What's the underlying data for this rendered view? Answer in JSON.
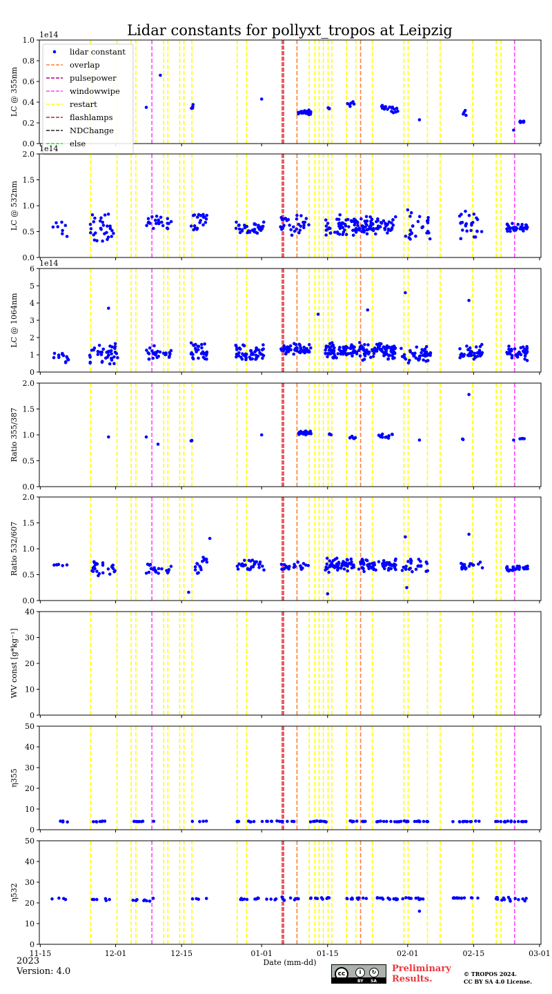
{
  "title": "Lidar constants for pollyxt_tropos at Leipzig",
  "footer": {
    "year": "2023",
    "version": "Version: 4.0",
    "preliminary_line1": "Preliminary",
    "preliminary_line2": "Results.",
    "copyright_line1": "© TROPOS 2024.",
    "copyright_line2": "CC BY SA 4.0 License.",
    "license_badge": {
      "cc": "cc",
      "by": "BY",
      "sa": "SA"
    }
  },
  "colors": {
    "points": "#0000ff",
    "overlap": "#ff7f3f",
    "pulsepower": "#aa0080",
    "windowwipe": "#ff44ff",
    "restart": "#ffff00",
    "flashlamps": "#a03030",
    "ndchange": "#202020",
    "else": "#00ff00",
    "highlight": "#e8343b"
  },
  "chart_data": {
    "type": "scatter",
    "x_unit": "days since 2022-11-15",
    "xlabel": "Date (mm-dd)",
    "xlim": [
      -0.2,
      106.3
    ],
    "xticks": [
      {
        "x": 0,
        "label": "11-15"
      },
      {
        "x": 16,
        "label": "12-01"
      },
      {
        "x": 30,
        "label": "12-15"
      },
      {
        "x": 47,
        "label": "01-01"
      },
      {
        "x": 61,
        "label": "01-15"
      },
      {
        "x": 78,
        "label": "02-01"
      },
      {
        "x": 92,
        "label": "02-15"
      },
      {
        "x": 106,
        "label": "03-01"
      }
    ],
    "legend": {
      "position": "top-left",
      "entries": [
        {
          "label": "lidar constant",
          "kind": "marker",
          "color": "#0000ff"
        },
        {
          "label": "overlap",
          "kind": "dashed",
          "color": "#ff7f3f"
        },
        {
          "label": "pulsepower",
          "kind": "dashed",
          "color": "#aa0080"
        },
        {
          "label": "windowwipe",
          "kind": "dashed",
          "color": "#ff44ff"
        },
        {
          "label": "restart",
          "kind": "dashed",
          "color": "#ffff00"
        },
        {
          "label": "flashlamps",
          "kind": "dashed",
          "color": "#a03030"
        },
        {
          "label": "NDChange",
          "kind": "dashed",
          "color": "#202020"
        },
        {
          "label": "else",
          "kind": "dashed",
          "color": "#00ff00"
        }
      ]
    },
    "events": {
      "restart": [
        10.7,
        16.3,
        19.3,
        20.3,
        26.2,
        27.1,
        29.6,
        30.5,
        32.2,
        41.8,
        43.8,
        54.5,
        57.1,
        58.3,
        59.2,
        60.1,
        61.1,
        61.9,
        65.0,
        67.0,
        70.5,
        77.2,
        78.1,
        82.2,
        84.9,
        91.8,
        96.8,
        97.8
      ],
      "windowwipe": [
        23.7,
        100.7
      ],
      "overlap": [
        54.5,
        68.0
      ],
      "highlight": [
        51.5
      ]
    },
    "panels": [
      {
        "name": "lc355",
        "ylabel": "LC @ 355nm",
        "ylim": [
          0,
          1.0
        ],
        "yticks": [
          "0.0",
          "0.2",
          "0.4",
          "0.6",
          "0.8",
          "1.0"
        ],
        "ytick_values": [
          0,
          0.2,
          0.4,
          0.6,
          0.8,
          1.0
        ],
        "offset": "1e14",
        "has_legend": true,
        "segments": [
          {
            "from": 22.5,
            "to": 22.5,
            "n": 1,
            "center": 0.35,
            "spread": 0
          },
          {
            "from": 25.5,
            "to": 25.5,
            "n": 1,
            "center": 0.66,
            "spread": 0
          },
          {
            "from": 32.0,
            "to": 32.5,
            "n": 4,
            "center": 0.35,
            "spread": 0.05
          },
          {
            "from": 47.0,
            "to": 47.0,
            "n": 1,
            "center": 0.43,
            "spread": 0
          },
          {
            "from": 54.8,
            "to": 57.5,
            "n": 40,
            "center": 0.3,
            "spread": 0.03
          },
          {
            "from": 61.0,
            "to": 62.0,
            "n": 3,
            "center": 0.34,
            "spread": 0.01
          },
          {
            "from": 65.0,
            "to": 67.0,
            "n": 6,
            "center": 0.39,
            "spread": 0.04
          },
          {
            "from": 71.5,
            "to": 76.0,
            "n": 18,
            "center": 0.34,
            "spread": 0.05
          },
          {
            "from": 80.5,
            "to": 80.5,
            "n": 1,
            "center": 0.23,
            "spread": 0
          },
          {
            "from": 89.5,
            "to": 90.5,
            "n": 4,
            "center": 0.25,
            "spread": 0.09
          },
          {
            "from": 100.5,
            "to": 100.5,
            "n": 1,
            "center": 0.13,
            "spread": 0
          },
          {
            "from": 101.8,
            "to": 102.8,
            "n": 10,
            "center": 0.21,
            "spread": 0.01
          }
        ]
      },
      {
        "name": "lc532",
        "ylabel": "LC @ 532nm",
        "ylim": [
          0,
          2.0
        ],
        "yticks": [
          "0.0",
          "0.5",
          "1.0",
          "1.5",
          "2.0"
        ],
        "ytick_values": [
          0,
          0.5,
          1.0,
          1.5,
          2.0
        ],
        "offset": "1e14",
        "segments": [
          {
            "from": 2.5,
            "to": 6.0,
            "n": 8,
            "center": 0.6,
            "spread": 0.25
          },
          {
            "from": 10.5,
            "to": 16.0,
            "n": 30,
            "center": 0.55,
            "spread": 0.35
          },
          {
            "from": 22.5,
            "to": 28.0,
            "n": 25,
            "center": 0.68,
            "spread": 0.15
          },
          {
            "from": 32.0,
            "to": 35.5,
            "n": 20,
            "center": 0.72,
            "spread": 0.3
          },
          {
            "from": 41.5,
            "to": 47.5,
            "n": 35,
            "center": 0.55,
            "spread": 0.15
          },
          {
            "from": 51.0,
            "to": 57.5,
            "n": 30,
            "center": 0.6,
            "spread": 0.25
          },
          {
            "from": 60.5,
            "to": 75.5,
            "n": 120,
            "center": 0.62,
            "spread": 0.22
          },
          {
            "from": 76.0,
            "to": 83.0,
            "n": 25,
            "center": 0.6,
            "spread": 0.35
          },
          {
            "from": 89.0,
            "to": 94.0,
            "n": 25,
            "center": 0.62,
            "spread": 0.3
          },
          {
            "from": 99.0,
            "to": 103.5,
            "n": 35,
            "center": 0.58,
            "spread": 0.08
          }
        ]
      },
      {
        "name": "lc1064",
        "ylabel": "LC @ 1064nm",
        "ylim": [
          0,
          6
        ],
        "yticks": [
          "0",
          "1",
          "2",
          "3",
          "4",
          "5",
          "6"
        ],
        "ytick_values": [
          0,
          1,
          2,
          3,
          4,
          5,
          6
        ],
        "offset": "1e14",
        "segments": [
          {
            "from": 2.5,
            "to": 6.0,
            "n": 12,
            "center": 1.0,
            "spread": 0.55
          },
          {
            "from": 10.5,
            "to": 16.5,
            "n": 40,
            "center": 1.0,
            "spread": 0.8
          },
          {
            "from": 22.5,
            "to": 28.0,
            "n": 30,
            "center": 1.1,
            "spread": 0.5
          },
          {
            "from": 32.0,
            "to": 35.5,
            "n": 30,
            "center": 1.2,
            "spread": 0.6
          },
          {
            "from": 41.5,
            "to": 47.5,
            "n": 50,
            "center": 1.1,
            "spread": 0.6
          },
          {
            "from": 51.0,
            "to": 57.5,
            "n": 55,
            "center": 1.3,
            "spread": 0.4
          },
          {
            "from": 60.5,
            "to": 75.5,
            "n": 160,
            "center": 1.2,
            "spread": 0.55
          },
          {
            "from": 76.0,
            "to": 83.0,
            "n": 40,
            "center": 1.0,
            "spread": 0.6
          },
          {
            "from": 89.0,
            "to": 94.0,
            "n": 40,
            "center": 1.1,
            "spread": 0.6
          },
          {
            "from": 99.0,
            "to": 103.5,
            "n": 45,
            "center": 1.1,
            "spread": 0.5
          },
          {
            "from": 14.5,
            "to": 14.5,
            "n": 1,
            "center": 3.7,
            "spread": 0
          },
          {
            "from": 59.0,
            "to": 59.0,
            "n": 1,
            "center": 3.35,
            "spread": 0
          },
          {
            "from": 69.5,
            "to": 69.5,
            "n": 1,
            "center": 3.6,
            "spread": 0
          },
          {
            "from": 77.5,
            "to": 77.5,
            "n": 1,
            "center": 4.6,
            "spread": 0
          },
          {
            "from": 91.0,
            "to": 91.0,
            "n": 1,
            "center": 4.15,
            "spread": 0
          }
        ]
      },
      {
        "name": "ratio355_387",
        "ylabel": "Ratio 355/387",
        "ylim": [
          0,
          2.0
        ],
        "yticks": [
          "0.0",
          "0.5",
          "1.0",
          "1.5",
          "2.0"
        ],
        "ytick_values": [
          0,
          0.5,
          1.0,
          1.5,
          2.0
        ],
        "segments": [
          {
            "from": 14.5,
            "to": 14.5,
            "n": 1,
            "center": 0.96,
            "spread": 0
          },
          {
            "from": 22.5,
            "to": 22.5,
            "n": 1,
            "center": 0.96,
            "spread": 0
          },
          {
            "from": 25.0,
            "to": 25.0,
            "n": 1,
            "center": 0.82,
            "spread": 0
          },
          {
            "from": 32.0,
            "to": 32.3,
            "n": 3,
            "center": 0.89,
            "spread": 0.02
          },
          {
            "from": 47.0,
            "to": 47.0,
            "n": 1,
            "center": 1.0,
            "spread": 0
          },
          {
            "from": 54.8,
            "to": 57.5,
            "n": 35,
            "center": 1.04,
            "spread": 0.05
          },
          {
            "from": 61.0,
            "to": 61.8,
            "n": 3,
            "center": 1.01,
            "spread": 0.02
          },
          {
            "from": 65.0,
            "to": 67.0,
            "n": 6,
            "center": 0.93,
            "spread": 0.06
          },
          {
            "from": 71.5,
            "to": 75.0,
            "n": 12,
            "center": 0.98,
            "spread": 0.05
          },
          {
            "from": 80.5,
            "to": 80.5,
            "n": 1,
            "center": 0.9,
            "spread": 0
          },
          {
            "from": 89.5,
            "to": 89.8,
            "n": 2,
            "center": 0.92,
            "spread": 0.02
          },
          {
            "from": 91.0,
            "to": 91.0,
            "n": 1,
            "center": 1.78,
            "spread": 0
          },
          {
            "from": 100.5,
            "to": 100.5,
            "n": 1,
            "center": 0.9,
            "spread": 0
          },
          {
            "from": 101.8,
            "to": 102.8,
            "n": 4,
            "center": 0.93,
            "spread": 0.02
          }
        ]
      },
      {
        "name": "ratio532_607",
        "ylabel": "Ratio 532/607",
        "ylim": [
          0,
          2.0
        ],
        "yticks": [
          "0.0",
          "0.5",
          "1.0",
          "1.5",
          "2.0"
        ],
        "ytick_values": [
          0,
          0.5,
          1.0,
          1.5,
          2.0
        ],
        "segments": [
          {
            "from": 2.5,
            "to": 6.0,
            "n": 6,
            "center": 0.69,
            "spread": 0.02
          },
          {
            "from": 10.5,
            "to": 16.0,
            "n": 25,
            "center": 0.62,
            "spread": 0.15
          },
          {
            "from": 22.5,
            "to": 28.0,
            "n": 20,
            "center": 0.62,
            "spread": 0.15
          },
          {
            "from": 32.0,
            "to": 35.5,
            "n": 15,
            "center": 0.68,
            "spread": 0.2
          },
          {
            "from": 41.5,
            "to": 47.5,
            "n": 30,
            "center": 0.68,
            "spread": 0.12
          },
          {
            "from": 51.0,
            "to": 57.5,
            "n": 25,
            "center": 0.65,
            "spread": 0.1
          },
          {
            "from": 60.5,
            "to": 75.5,
            "n": 110,
            "center": 0.68,
            "spread": 0.15
          },
          {
            "from": 76.0,
            "to": 83.0,
            "n": 25,
            "center": 0.68,
            "spread": 0.2
          },
          {
            "from": 89.0,
            "to": 94.0,
            "n": 20,
            "center": 0.68,
            "spread": 0.1
          },
          {
            "from": 99.0,
            "to": 103.5,
            "n": 30,
            "center": 0.62,
            "spread": 0.06
          },
          {
            "from": 36.0,
            "to": 36.0,
            "n": 1,
            "center": 1.2,
            "spread": 0
          },
          {
            "from": 31.5,
            "to": 31.5,
            "n": 1,
            "center": 0.16,
            "spread": 0
          },
          {
            "from": 61.0,
            "to": 61.0,
            "n": 1,
            "center": 0.13,
            "spread": 0
          },
          {
            "from": 91.0,
            "to": 91.0,
            "n": 1,
            "center": 1.28,
            "spread": 0
          },
          {
            "from": 77.5,
            "to": 77.5,
            "n": 1,
            "center": 1.23,
            "spread": 0
          },
          {
            "from": 77.8,
            "to": 77.8,
            "n": 1,
            "center": 0.25,
            "spread": 0
          }
        ]
      },
      {
        "name": "wvconst",
        "ylabel": "WV const [g*kg⁻¹]",
        "ylim": [
          0,
          40
        ],
        "yticks": [
          "0",
          "10",
          "20",
          "30",
          "40"
        ],
        "ytick_values": [
          0,
          10,
          20,
          30,
          40
        ],
        "segments": []
      },
      {
        "name": "eta355",
        "ylabel": "η355",
        "ylim": [
          0,
          50
        ],
        "yticks": [
          "0",
          "10",
          "20",
          "30",
          "40",
          "50"
        ],
        "ytick_values": [
          0,
          10,
          20,
          30,
          40,
          50
        ],
        "segments": [
          {
            "from": 2.5,
            "to": 6.0,
            "n": 5,
            "center": 4.0,
            "spread": 0.3
          },
          {
            "from": 10.5,
            "to": 15.0,
            "n": 7,
            "center": 3.9,
            "spread": 0.3
          },
          {
            "from": 19.5,
            "to": 25.0,
            "n": 8,
            "center": 4.0,
            "spread": 0.3
          },
          {
            "from": 32.0,
            "to": 36.0,
            "n": 4,
            "center": 4.0,
            "spread": 0.2
          },
          {
            "from": 41.5,
            "to": 55.0,
            "n": 22,
            "center": 4.0,
            "spread": 0.3
          },
          {
            "from": 57.0,
            "to": 62.0,
            "n": 10,
            "center": 4.0,
            "spread": 0.3
          },
          {
            "from": 65.0,
            "to": 82.5,
            "n": 35,
            "center": 4.0,
            "spread": 0.3
          },
          {
            "from": 87.5,
            "to": 93.5,
            "n": 12,
            "center": 4.0,
            "spread": 0.3
          },
          {
            "from": 96.5,
            "to": 103.5,
            "n": 16,
            "center": 4.0,
            "spread": 0.3
          }
        ]
      },
      {
        "name": "eta532",
        "ylabel": "η532",
        "ylim": [
          0,
          50
        ],
        "yticks": [
          "0",
          "10",
          "20",
          "30",
          "40",
          "50"
        ],
        "ytick_values": [
          0,
          10,
          20,
          30,
          40,
          50
        ],
        "segments": [
          {
            "from": 2.5,
            "to": 6.0,
            "n": 4,
            "center": 22.0,
            "spread": 0.5
          },
          {
            "from": 10.5,
            "to": 15.0,
            "n": 6,
            "center": 21.5,
            "spread": 1.0
          },
          {
            "from": 19.5,
            "to": 25.0,
            "n": 8,
            "center": 21.5,
            "spread": 1.2
          },
          {
            "from": 32.0,
            "to": 36.0,
            "n": 4,
            "center": 22.0,
            "spread": 0.4
          },
          {
            "from": 41.5,
            "to": 55.0,
            "n": 22,
            "center": 22.0,
            "spread": 1.0
          },
          {
            "from": 57.0,
            "to": 62.0,
            "n": 10,
            "center": 22.2,
            "spread": 0.6
          },
          {
            "from": 65.0,
            "to": 82.5,
            "n": 35,
            "center": 22.0,
            "spread": 0.6
          },
          {
            "from": 87.5,
            "to": 93.5,
            "n": 12,
            "center": 22.3,
            "spread": 0.5
          },
          {
            "from": 96.5,
            "to": 103.5,
            "n": 16,
            "center": 21.8,
            "spread": 1.0
          },
          {
            "from": 80.5,
            "to": 80.5,
            "n": 1,
            "center": 16.0,
            "spread": 0
          }
        ]
      }
    ]
  }
}
